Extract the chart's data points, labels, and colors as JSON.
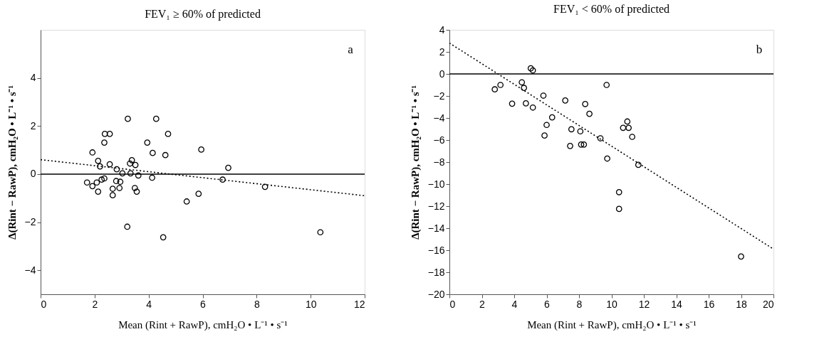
{
  "chart_data": [
    {
      "type": "scatter",
      "title": "FEV₁ ≥ 60% of predicted",
      "xlabel": "Mean (Rint + RawP), cmH₂O • L⁻¹ • s⁻¹",
      "ylabel": "Δ(Rint − RawP), cmH₂O • L⁻¹ • s⁻¹",
      "xlim": [
        0,
        12
      ],
      "xticks": [
        0,
        2,
        4,
        6,
        8,
        10,
        12
      ],
      "ylim": [
        -5,
        6
      ],
      "yticks": [
        -4,
        -2,
        0,
        2,
        4
      ],
      "grid": false,
      "annotations": [
        "a"
      ],
      "ref_lines": [
        {
          "axis": "y",
          "value": 0,
          "color": "#000000",
          "line_style": "solid"
        }
      ],
      "series": [
        {
          "type": "scatter",
          "marker": "circle",
          "color": "#000000",
          "x": [
            3.23,
            4.28,
            4.72,
            2.38,
            2.56,
            2.36,
            3.95,
            1.92,
            4.15,
            4.62,
            2.13,
            3.38,
            2.2,
            2.56,
            3.31,
            3.51,
            2.82,
            3.03,
            3.33,
            3.62,
            4.13,
            2.36,
            2.26,
            2.8,
            2.95,
            1.72,
            2.08,
            1.92,
            2.67,
            2.92,
            3.49,
            2.13,
            3.56,
            2.67,
            3.21,
            4.54,
            5.95,
            6.95,
            6.74,
            8.31,
            5.85,
            5.41,
            10.36
          ],
          "values": [
            2.3,
            2.3,
            1.67,
            1.67,
            1.67,
            1.31,
            1.31,
            0.9,
            0.88,
            0.79,
            0.55,
            0.58,
            0.32,
            0.41,
            0.44,
            0.38,
            0.2,
            0.03,
            0.03,
            -0.06,
            -0.15,
            -0.18,
            -0.23,
            -0.29,
            -0.32,
            -0.35,
            -0.35,
            -0.5,
            -0.61,
            -0.58,
            -0.58,
            -0.73,
            -0.73,
            -0.88,
            -2.19,
            -2.63,
            1.02,
            0.26,
            -0.23,
            -0.53,
            -0.82,
            -1.14,
            -2.42
          ]
        },
        {
          "type": "line",
          "line_style": "dotted",
          "color": "#000000",
          "x": [
            0,
            12
          ],
          "values": [
            0.6,
            -0.9
          ]
        }
      ]
    },
    {
      "type": "scatter",
      "title": "FEV₁ < 60% of predicted",
      "xlabel": "Mean (Rint + RawP), cmH₂O • L⁻¹ • s⁻¹",
      "ylabel": "Δ(Rint − RawP), cmH₂O • L⁻¹ • s⁻¹",
      "xlim": [
        0,
        20
      ],
      "xticks": [
        0,
        2,
        4,
        6,
        8,
        10,
        12,
        14,
        16,
        18,
        20
      ],
      "ylim": [
        -20,
        4
      ],
      "yticks": [
        -20,
        -18,
        -16,
        -14,
        -12,
        -10,
        -8,
        -6,
        -4,
        -2,
        0,
        2,
        4
      ],
      "grid": false,
      "annotations": [
        "b"
      ],
      "ref_lines": [
        {
          "axis": "y",
          "value": 0,
          "color": "#000000",
          "line_style": "solid"
        }
      ],
      "series": [
        {
          "type": "scatter",
          "marker": "circle",
          "color": "#000000",
          "x": [
            2.8,
            3.15,
            3.87,
            4.47,
            4.6,
            4.72,
            5.15,
            5.02,
            5.15,
            5.8,
            7.15,
            8.38,
            8.64,
            6.34,
            6.0,
            5.87,
            7.53,
            8.08,
            7.45,
            8.13,
            8.3,
            9.32,
            9.74,
            10.98,
            10.72,
            11.06,
            11.28,
            11.66,
            10.47,
            10.47,
            18.0,
            9.7
          ],
          "values": [
            -1.4,
            -1.0,
            -2.7,
            -0.76,
            -1.27,
            -2.67,
            -3.05,
            0.51,
            0.32,
            -1.97,
            -2.41,
            -2.73,
            -3.62,
            -3.94,
            -4.63,
            -5.59,
            -5.02,
            -5.21,
            -6.54,
            -6.41,
            -6.41,
            -5.84,
            -7.68,
            -4.32,
            -4.89,
            -4.89,
            -5.71,
            -8.25,
            -10.73,
            -12.25,
            -16.57,
            -1.0
          ]
        },
        {
          "type": "line",
          "line_style": "dotted",
          "color": "#000000",
          "x": [
            0,
            20
          ],
          "values": [
            2.8,
            -15.9
          ]
        }
      ]
    }
  ]
}
